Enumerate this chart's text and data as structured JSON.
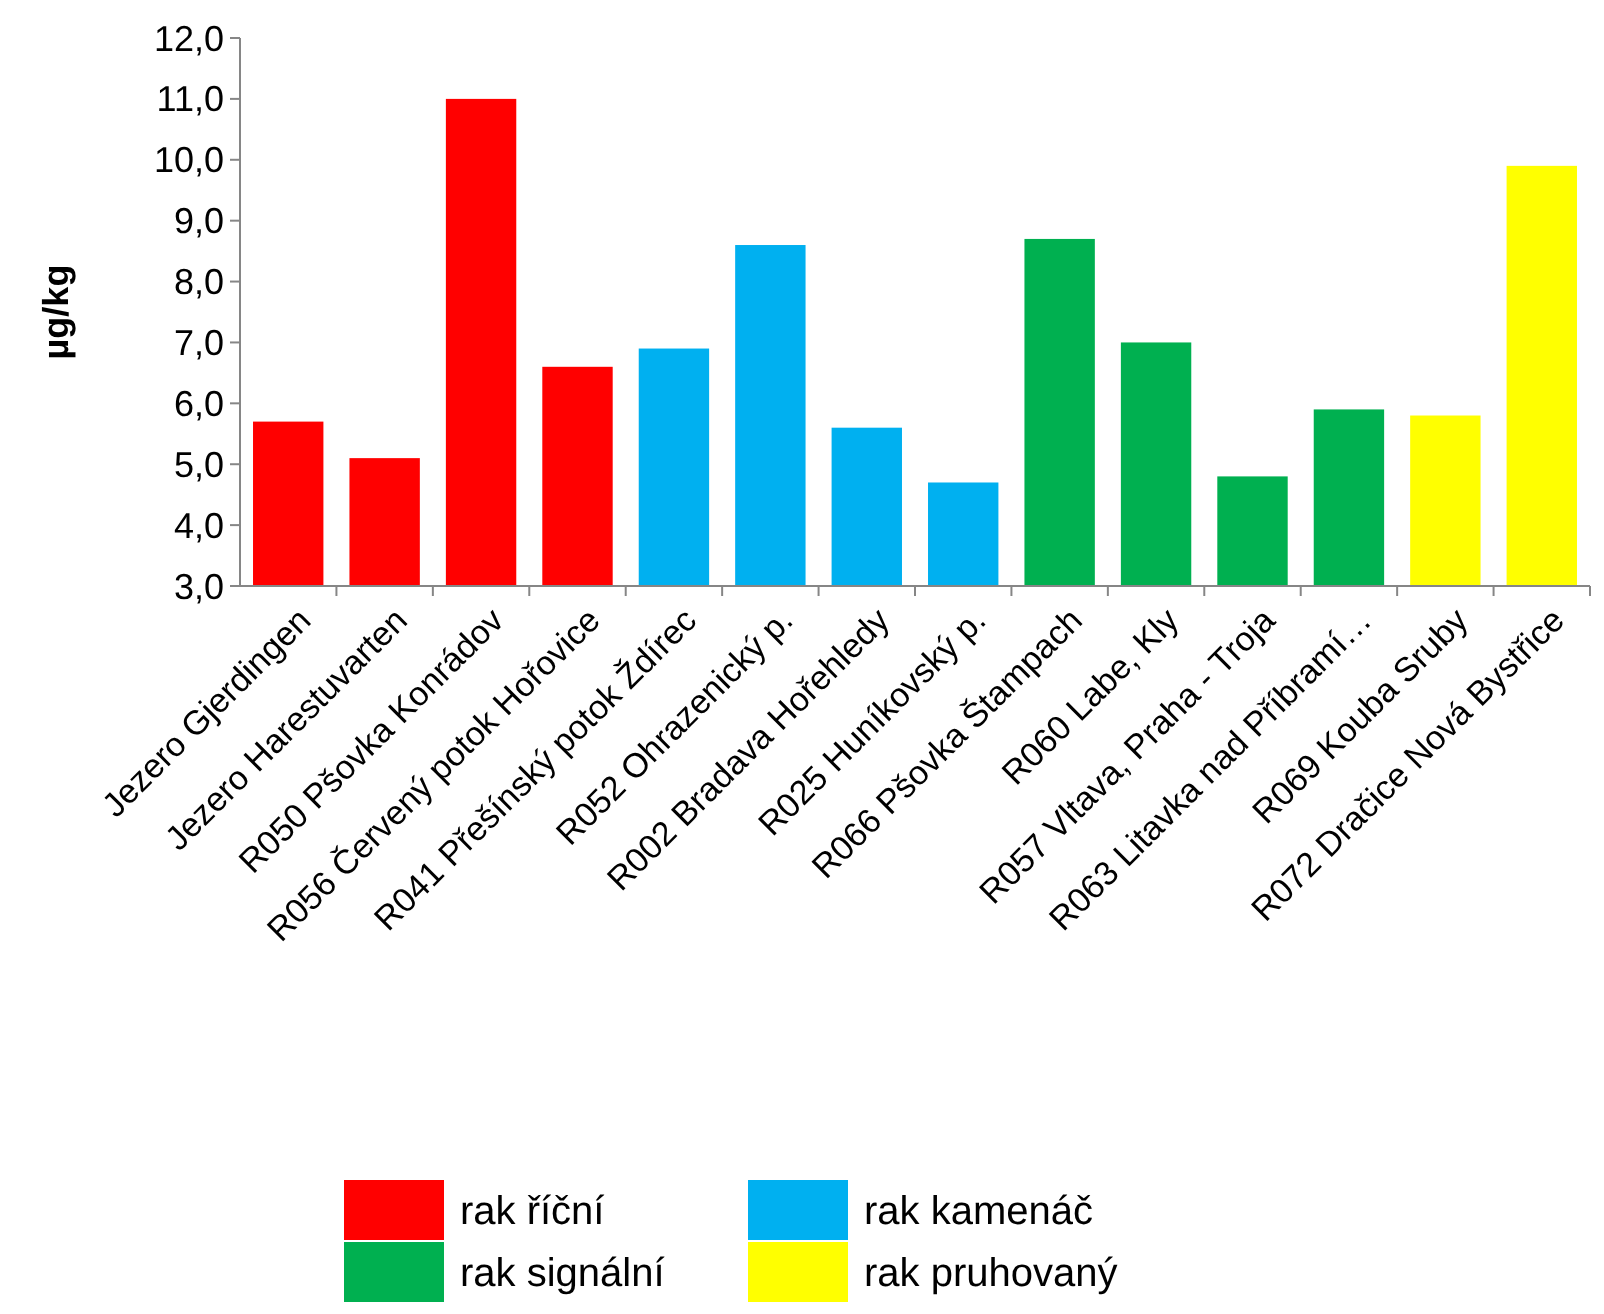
{
  "chart_data": {
    "type": "bar",
    "ylabel": "µg/kg",
    "categories": [
      "Jezero Gjerdingen",
      "Jezero Harestuvarten",
      "R050 Pšovka Konrádov",
      "R056 Červený potok Hořovice",
      "R041 Přešínský potok Ždírec",
      "R052 Ohrazenický p.",
      "R002  Bradava Hořehledy",
      "R025 Huníkovský p.",
      "R066 Pšovka Štampach",
      "R060  Labe, Kly",
      "R057  Vltava, Praha - Troja",
      "R063 Litavka nad Příbramí…",
      "R069  Kouba Sruby",
      "R072  Dračice Nová Bystřice"
    ],
    "series": [
      {
        "name": "rak říční",
        "color": "#ff0000",
        "values": [
          5.7,
          5.1,
          11.0,
          6.6,
          null,
          null,
          null,
          null,
          null,
          null,
          null,
          null,
          null,
          null
        ]
      },
      {
        "name": "rak kamenáč",
        "color": "#00b0f0",
        "values": [
          null,
          null,
          null,
          null,
          6.9,
          8.6,
          5.6,
          4.7,
          null,
          null,
          null,
          null,
          null,
          null
        ]
      },
      {
        "name": "rak signální",
        "color": "#00b050",
        "values": [
          null,
          null,
          null,
          null,
          null,
          null,
          null,
          null,
          8.7,
          7.0,
          4.8,
          5.9,
          null,
          null
        ]
      },
      {
        "name": "rak pruhovaný",
        "color": "#ffff00",
        "values": [
          null,
          null,
          null,
          null,
          null,
          null,
          null,
          null,
          null,
          null,
          null,
          null,
          5.8,
          9.9
        ]
      }
    ],
    "ylim": [
      3,
      12
    ],
    "yticks": [
      {
        "value": 3,
        "label": "3,0"
      },
      {
        "value": 4,
        "label": "4,0"
      },
      {
        "value": 5,
        "label": "5,0"
      },
      {
        "value": 6,
        "label": "6,0"
      },
      {
        "value": 7,
        "label": "7,0"
      },
      {
        "value": 8,
        "label": "8,0"
      },
      {
        "value": 9,
        "label": "9,0"
      },
      {
        "value": 10,
        "label": "10,0"
      },
      {
        "value": 11,
        "label": "11,0"
      },
      {
        "value": 12,
        "label": "12,0"
      }
    ],
    "grid": false,
    "legend": "bottom"
  }
}
